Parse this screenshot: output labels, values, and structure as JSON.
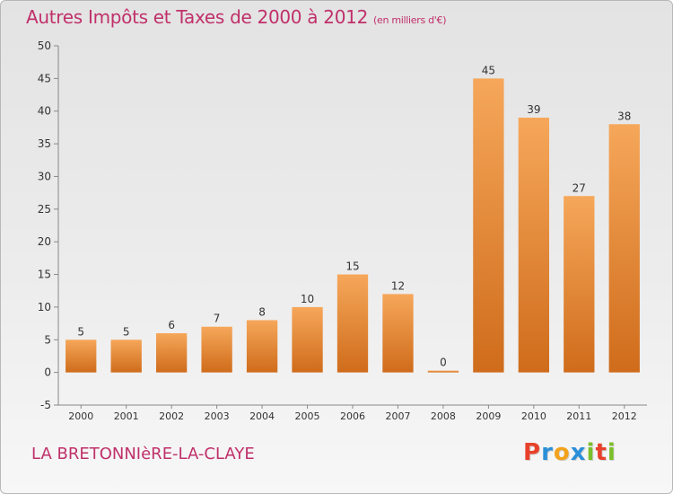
{
  "header": {
    "title": "Autres Impôts et Taxes de 2000 à 2012",
    "unit": "(en milliers d'€)"
  },
  "footer": {
    "commune": "LA BRETONNIèRE-LA-CLAYE",
    "logo_letters": [
      "P",
      "r",
      "o",
      "x",
      "i",
      "t",
      "i"
    ],
    "logo_colors": [
      "#e8412b",
      "#2b8fd8",
      "#f2a21b",
      "#2b8fd8",
      "#7bbf2a",
      "#e8412b",
      "#7bbf2a"
    ]
  },
  "chart_data": {
    "type": "bar",
    "categories": [
      "2000",
      "2001",
      "2002",
      "2003",
      "2004",
      "2005",
      "2006",
      "2007",
      "2008",
      "2009",
      "2010",
      "2011",
      "2012"
    ],
    "values": [
      5,
      5,
      6,
      7,
      8,
      10,
      15,
      12,
      0,
      45,
      39,
      27,
      38
    ],
    "title": "Autres Impôts et Taxes de 2000 à 2012",
    "subtitle": "(en milliers d'€)",
    "xlabel": "",
    "ylabel": "",
    "ylim": [
      -5,
      50
    ],
    "yticks": [
      -5,
      0,
      5,
      10,
      15,
      20,
      25,
      30,
      35,
      40,
      45,
      50
    ],
    "grid": false,
    "colors": {
      "bar_light": "#f6a75a",
      "bar_dark": "#cf6c1b",
      "axis": "#888888",
      "text": "#333333"
    }
  }
}
